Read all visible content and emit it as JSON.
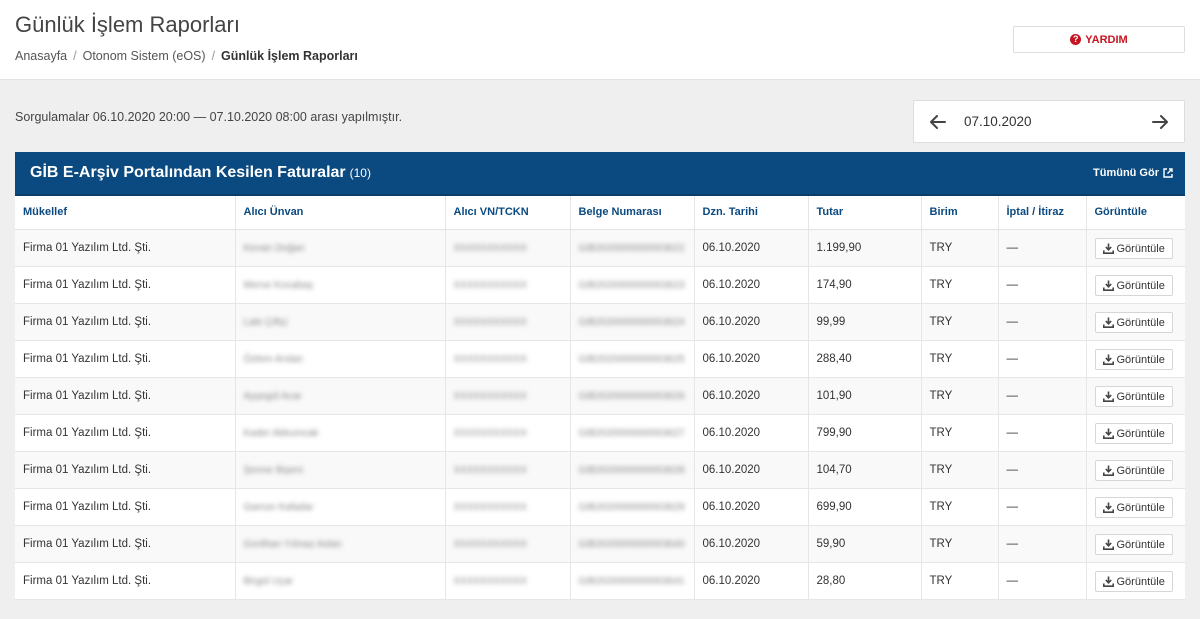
{
  "header": {
    "title": "Günlük İşlem Raporları",
    "breadcrumb": [
      "Anasayfa",
      "Otonom Sistem (eOS)",
      "Günlük İşlem Raporları"
    ],
    "help_label": "YARDIM"
  },
  "query": {
    "text": "Sorgulamalar 06.10.2020 20:00 — 07.10.2020 08:00 arası yapılmıştır.",
    "date": "07.10.2020"
  },
  "panel": {
    "title": "GİB E-Arşiv Portalından Kesilen Faturalar",
    "count": "(10)",
    "see_all_label": "Tümünü Gör",
    "header_color": "#0b4a80"
  },
  "table": {
    "columns": [
      "Mükellef",
      "Alıcı Ünvan",
      "Alıcı VN/TCKN",
      "Belge Numarası",
      "Dzn. Tarihi",
      "Tutar",
      "Birim",
      "İptal / İtiraz",
      "Görüntüle"
    ],
    "view_label": "Görüntüle",
    "rows": [
      {
        "mukellef": "Firma 01 Yazılım Ltd. Şti.",
        "alici": "Kenan Doğan",
        "vn": "XXXXXXXXXXX",
        "belge": "GIB2020000000003622",
        "tarih": "06.10.2020",
        "tutar": "1.199,90",
        "birim": "TRY",
        "iptal": "—"
      },
      {
        "mukellef": "Firma 01 Yazılım Ltd. Şti.",
        "alici": "Merve Kocabaş",
        "vn": "XXXXXXXXXXX",
        "belge": "GIB2020000000003623",
        "tarih": "06.10.2020",
        "tutar": "174,90",
        "birim": "TRY",
        "iptal": "—"
      },
      {
        "mukellef": "Firma 01 Yazılım Ltd. Şti.",
        "alici": "Lale Çiftçi",
        "vn": "XXXXXXXXXXX",
        "belge": "GIB2020000000003624",
        "tarih": "06.10.2020",
        "tutar": "99,99",
        "birim": "TRY",
        "iptal": "—"
      },
      {
        "mukellef": "Firma 01 Yazılım Ltd. Şti.",
        "alici": "Özlem Arslan",
        "vn": "XXXXXXXXXXX",
        "belge": "GIB2020000000003625",
        "tarih": "06.10.2020",
        "tutar": "288,40",
        "birim": "TRY",
        "iptal": "—"
      },
      {
        "mukellef": "Firma 01 Yazılım Ltd. Şti.",
        "alici": "Ayşegül Acar",
        "vn": "XXXXXXXXXXX",
        "belge": "GIB2020000000003626",
        "tarih": "06.10.2020",
        "tutar": "101,90",
        "birim": "TRY",
        "iptal": "—"
      },
      {
        "mukellef": "Firma 01 Yazılım Ltd. Şti.",
        "alici": "Kader Akkumcak",
        "vn": "XXXXXXXXXXX",
        "belge": "GIB2020000000003627",
        "tarih": "06.10.2020",
        "tutar": "799,90",
        "birim": "TRY",
        "iptal": "—"
      },
      {
        "mukellef": "Firma 01 Yazılım Ltd. Şti.",
        "alici": "Şerme Bişeni",
        "vn": "XXXXXXXXXXX",
        "belge": "GIB2020000000003628",
        "tarih": "06.10.2020",
        "tutar": "104,70",
        "birim": "TRY",
        "iptal": "—"
      },
      {
        "mukellef": "Firma 01 Yazılım Ltd. Şti.",
        "alici": "Gamze Kafadar",
        "vn": "XXXXXXXXXXX",
        "belge": "GIB2020000000003629",
        "tarih": "06.10.2020",
        "tutar": "699,90",
        "birim": "TRY",
        "iptal": "—"
      },
      {
        "mukellef": "Firma 01 Yazılım Ltd. Şti.",
        "alici": "Gonlhan Yılmaz Aslan",
        "vn": "XXXXXXXXXXX",
        "belge": "GIB2020000000003640",
        "tarih": "06.10.2020",
        "tutar": "59,90",
        "birim": "TRY",
        "iptal": "—"
      },
      {
        "mukellef": "Firma 01 Yazılım Ltd. Şti.",
        "alici": "Birgül Uçar",
        "vn": "XXXXXXXXXXX",
        "belge": "GIB2020000000003641",
        "tarih": "06.10.2020",
        "tutar": "28,80",
        "birim": "TRY",
        "iptal": "—"
      }
    ]
  }
}
